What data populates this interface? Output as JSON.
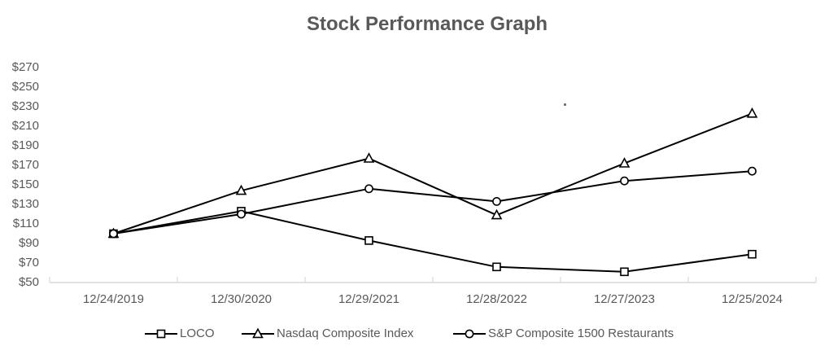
{
  "chart_data": {
    "type": "line",
    "title": "Stock Performance Graph",
    "categories": [
      "12/24/2019",
      "12/30/2020",
      "12/29/2021",
      "12/28/2022",
      "12/27/2023",
      "12/25/2024"
    ],
    "series": [
      {
        "name": "LOCO",
        "marker": "square",
        "color": "#000000",
        "values": [
          100,
          123,
          93,
          66,
          61,
          79
        ]
      },
      {
        "name": "Nasdaq Composite Index",
        "marker": "triangle",
        "color": "#000000",
        "values": [
          100,
          144,
          177,
          119,
          172,
          223
        ]
      },
      {
        "name": "S&P Composite 1500 Restaurants",
        "marker": "circle",
        "color": "#000000",
        "values": [
          100,
          120,
          146,
          133,
          154,
          164
        ]
      }
    ],
    "xlabel": "",
    "ylabel": "",
    "ylim": [
      50,
      270
    ],
    "ytick_step": 20,
    "ytick_labels": [
      "$270",
      "$250",
      "$230",
      "$210",
      "$190",
      "$170",
      "$150",
      "$130",
      "$110",
      "$90",
      "$70",
      "$50"
    ],
    "grid": false,
    "legend_position": "bottom",
    "colors": {
      "text": "#595959",
      "axis_line": "#D9D9D9",
      "series_line": "#000000",
      "marker_fill": "#ffffff",
      "background": "#ffffff"
    }
  }
}
